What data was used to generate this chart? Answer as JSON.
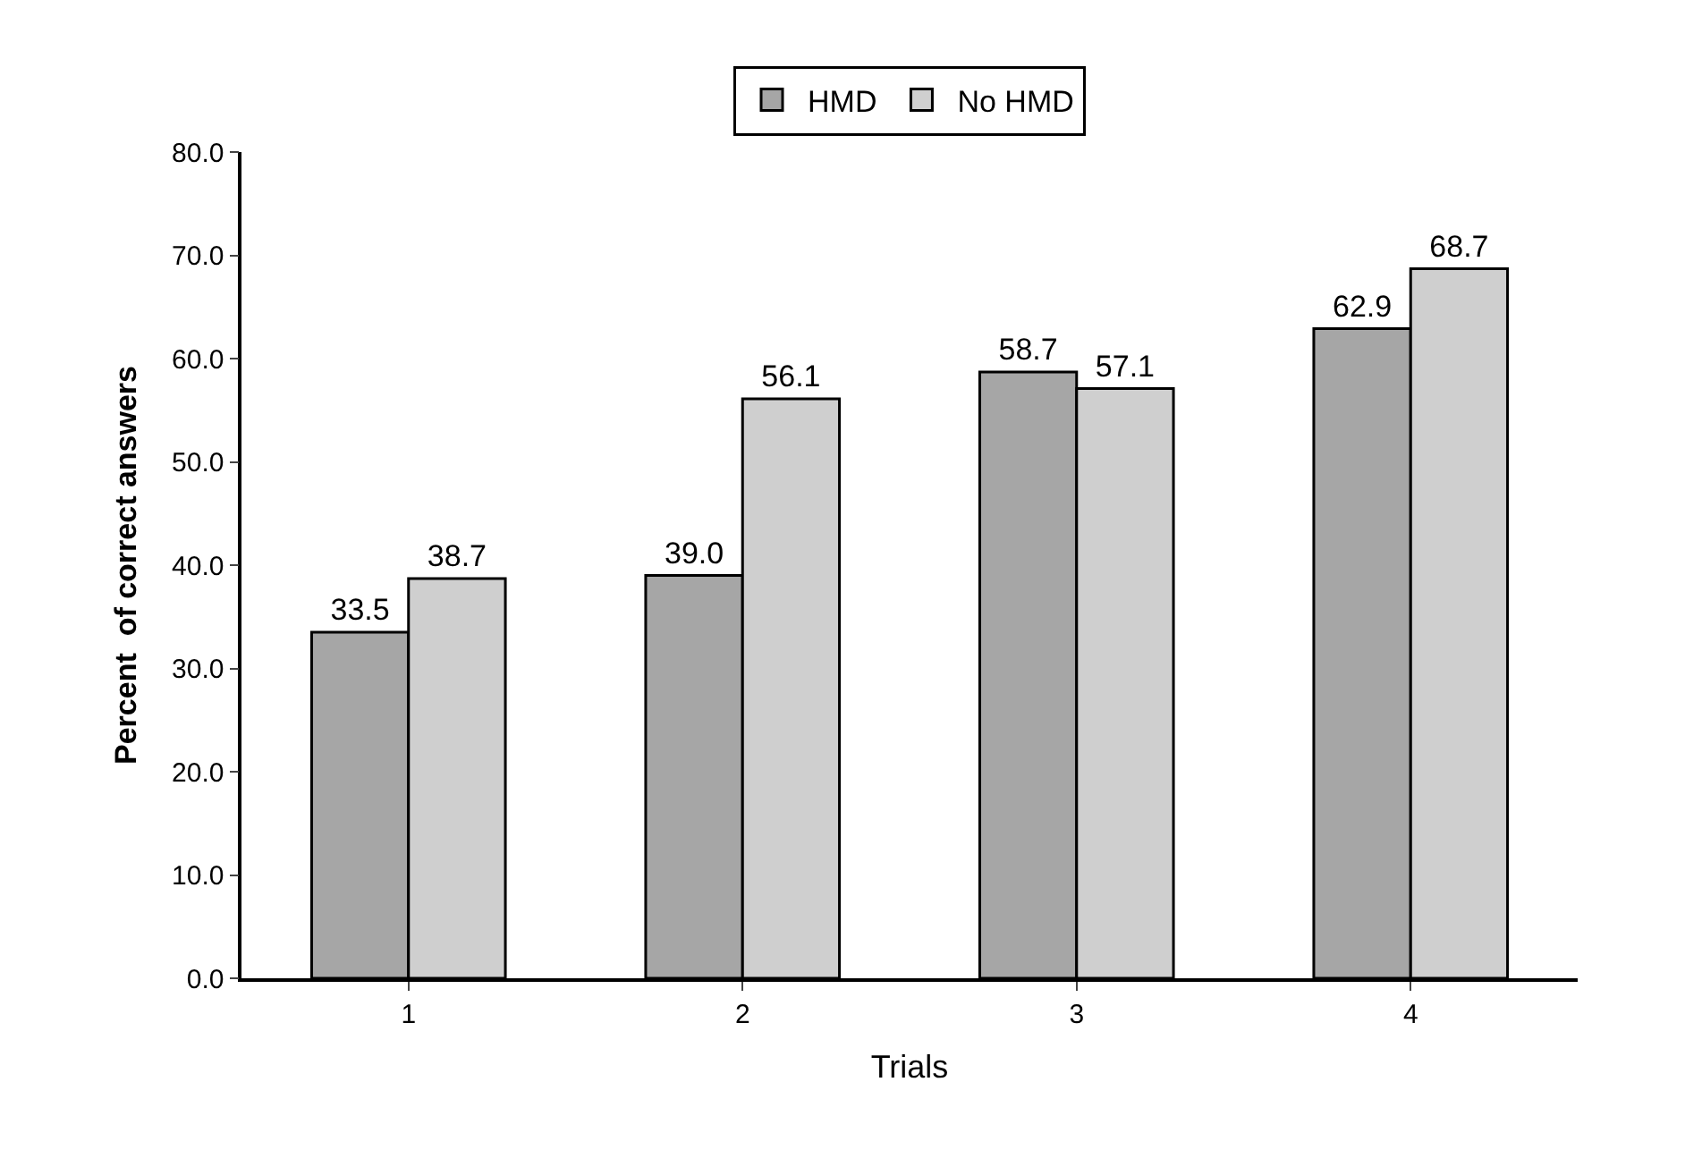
{
  "chart_data": {
    "type": "bar",
    "xlabel": "Trials",
    "ylabel": "Percent  of correct answers",
    "categories": [
      "1",
      "2",
      "3",
      "4"
    ],
    "series": [
      {
        "name": "HMD",
        "color": "#a6a6a6",
        "values": [
          33.5,
          39.0,
          58.7,
          62.9
        ],
        "value_labels": [
          "33.5",
          "39.0",
          "58.7",
          "62.9"
        ]
      },
      {
        "name": "No HMD",
        "color": "#cfcfcf",
        "values": [
          38.7,
          56.1,
          57.1,
          68.7
        ],
        "value_labels": [
          "38.7",
          "56.1",
          "57.1",
          "68.7"
        ]
      }
    ],
    "ylim": [
      0,
      80
    ],
    "yticks": [
      {
        "value": 0,
        "label": "0.0"
      },
      {
        "value": 10,
        "label": "10.0"
      },
      {
        "value": 20,
        "label": "20.0"
      },
      {
        "value": 30,
        "label": "30.0"
      },
      {
        "value": 40,
        "label": "40.0"
      },
      {
        "value": 50,
        "label": "50.0"
      },
      {
        "value": 60,
        "label": "60.0"
      },
      {
        "value": 70,
        "label": "70.0"
      },
      {
        "value": 80,
        "label": "80.0"
      }
    ],
    "legend": "top"
  }
}
